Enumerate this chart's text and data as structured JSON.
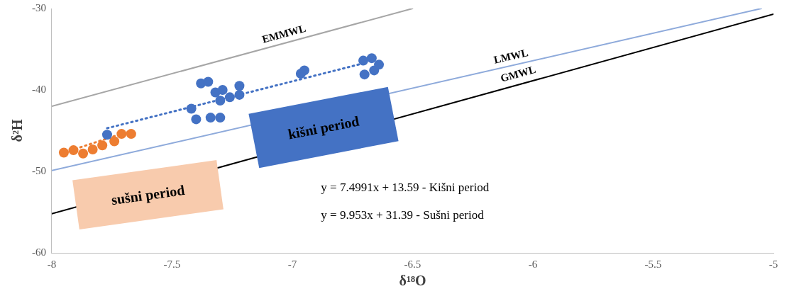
{
  "chart_data": {
    "type": "scatter",
    "xlabel": "δ¹⁸O",
    "ylabel": "δ²H",
    "xlim": [
      -8,
      -5
    ],
    "ylim": [
      -60,
      -30
    ],
    "xticks": [
      -8,
      -7.5,
      -7,
      -6.5,
      -6,
      -5.5,
      -5
    ],
    "yticks": [
      -60,
      -50,
      -40,
      -30
    ],
    "grid": false,
    "legend": false,
    "marker": "circle",
    "annotations": [
      "kišni period",
      "sušni period",
      "y = 7.4991x + 13.59 - Kišni period",
      "y = 9.953x + 31.39 - Sušni period"
    ],
    "series": [
      {
        "name": "EMMWL",
        "type": "line",
        "marker": "none",
        "color": "#a6a6a6",
        "x": [
          -8,
          -6.5
        ],
        "values": [
          -42,
          -30
        ]
      },
      {
        "name": "LMWL",
        "type": "line",
        "marker": "none",
        "color": "#8eaadb",
        "x": [
          -8,
          -5.05
        ],
        "values": [
          -49.9,
          -30
        ]
      },
      {
        "name": "GMWL",
        "type": "line",
        "marker": "none",
        "color": "#000000",
        "x": [
          -8,
          -5
        ],
        "values": [
          -55.2,
          -30.7
        ]
      },
      {
        "color": "#4472c4",
        "x": [
          -7.77,
          -7.42,
          -7.4,
          -7.38,
          -7.35,
          -7.32,
          -7.29,
          -7.3,
          -7.26,
          -7.22,
          -7.22,
          -7.34,
          -7.3,
          -6.965,
          -6.95,
          -6.705,
          -6.67,
          -6.7,
          -6.66,
          -6.64
        ],
        "values": [
          -45.5,
          -42.3,
          -43.6,
          -39.2,
          -39,
          -40.3,
          -40,
          -41.3,
          -40.9,
          -40.6,
          -39.5,
          -43.4,
          -43.4,
          -38,
          -37.6,
          -36.4,
          -36.1,
          -38.1,
          -37.6,
          -36.9
        ]
      },
      {
        "type": "line",
        "color": "#4472c4",
        "line_style": "dotted",
        "marker": "none",
        "x": [
          -7.77,
          -6.7
        ],
        "values": [
          -44.7,
          -36.7
        ]
      },
      {
        "color": "#ed7d31",
        "x": [
          -7.95,
          -7.91,
          -7.87,
          -7.83,
          -7.79,
          -7.74,
          -7.71,
          -7.67
        ],
        "values": [
          -47.7,
          -47.4,
          -47.8,
          -47.3,
          -46.8,
          -46.3,
          -45.4,
          -45.4
        ]
      },
      {
        "type": "line",
        "color": "#ed7d31",
        "line_style": "dotted",
        "marker": "none",
        "x": [
          -7.96,
          -7.67
        ],
        "values": [
          -47.8,
          -45
        ]
      }
    ]
  }
}
